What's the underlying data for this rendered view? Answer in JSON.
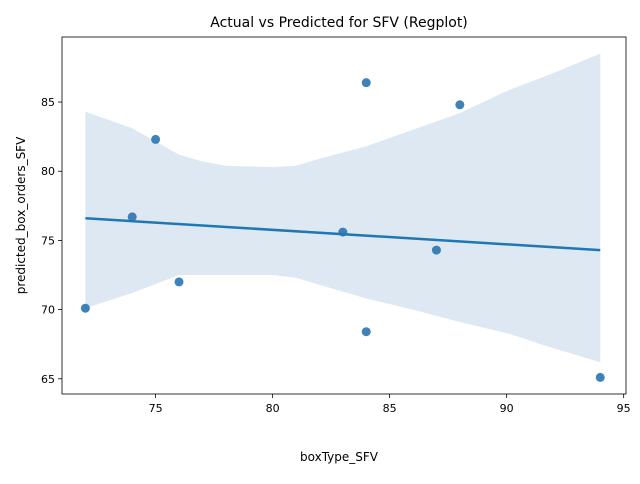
{
  "chart_data": {
    "type": "scatter",
    "title": "Actual vs Predicted for SFV (Regplot)",
    "xlabel": "boxType_SFV",
    "ylabel": "predicted_box_orders_SFV",
    "xlim": [
      71.0,
      95.1
    ],
    "ylim": [
      63.9,
      89.7
    ],
    "xticks": [
      75,
      80,
      85,
      90,
      95
    ],
    "yticks": [
      65,
      70,
      75,
      80,
      85
    ],
    "grid": false,
    "legend": "none",
    "points": [
      {
        "x": 72,
        "y": 70.1
      },
      {
        "x": 74,
        "y": 76.7
      },
      {
        "x": 75,
        "y": 82.3
      },
      {
        "x": 76,
        "y": 72.0
      },
      {
        "x": 83,
        "y": 75.6
      },
      {
        "x": 84,
        "y": 86.4
      },
      {
        "x": 84,
        "y": 68.4
      },
      {
        "x": 87,
        "y": 74.3
      },
      {
        "x": 88,
        "y": 84.8
      },
      {
        "x": 94,
        "y": 65.1
      }
    ],
    "regression_line": {
      "x": [
        72,
        94
      ],
      "y": [
        76.6,
        74.3
      ]
    },
    "confidence_band": {
      "x": [
        72,
        74,
        76,
        77,
        78,
        80,
        81,
        82,
        84,
        86,
        88,
        90,
        92,
        94
      ],
      "upper": [
        84.3,
        83.1,
        81.2,
        80.7,
        80.4,
        80.3,
        80.4,
        80.9,
        81.8,
        83.0,
        84.2,
        85.8,
        87.1,
        88.5
      ],
      "lower": [
        70.1,
        71.2,
        72.5,
        72.5,
        72.5,
        72.5,
        72.3,
        71.8,
        70.8,
        70.0,
        69.1,
        68.3,
        67.2,
        66.2
      ]
    },
    "colors": {
      "points": "#2a74b0",
      "line": "#1f77b4",
      "band": "#dde8f3"
    }
  }
}
